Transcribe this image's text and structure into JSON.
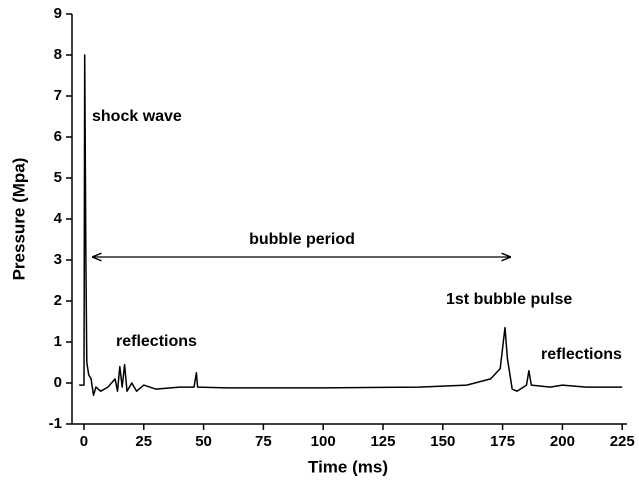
{
  "chart_data": {
    "type": "line",
    "xlabel": "Time (ms)",
    "ylabel": "Pressure (Mpa)",
    "x": [
      -2,
      0,
      0.3,
      0.8,
      1.2,
      2,
      3,
      4,
      5,
      7,
      10,
      13,
      14,
      15,
      16,
      17,
      18,
      20,
      22,
      25,
      30,
      40,
      46,
      47,
      47.5,
      60,
      100,
      140,
      160,
      170,
      174,
      176,
      177,
      179,
      181,
      185,
      186,
      187,
      195,
      200,
      210,
      225
    ],
    "values": [
      -0.05,
      -0.05,
      8.0,
      3,
      0.5,
      0.2,
      0.1,
      -0.3,
      -0.1,
      -0.2,
      -0.1,
      0.1,
      -0.2,
      0.4,
      -0.1,
      0.45,
      -0.2,
      0,
      -0.2,
      -0.05,
      -0.15,
      -0.1,
      -0.1,
      0.25,
      -0.1,
      -0.12,
      -0.12,
      -0.1,
      -0.05,
      0.1,
      0.35,
      1.35,
      0.6,
      -0.15,
      -0.2,
      -0.05,
      0.3,
      -0.05,
      -0.1,
      -0.05,
      -0.1,
      -0.1
    ],
    "color": "#000000",
    "xlim": [
      -5,
      227
    ],
    "ylim": [
      -1,
      9
    ],
    "xticks": [
      0,
      25,
      50,
      75,
      100,
      125,
      150,
      175,
      200,
      225
    ],
    "yticks": [
      -1,
      0,
      1,
      2,
      3,
      4,
      5,
      6,
      7,
      8,
      9
    ],
    "annotations": [
      "shock wave",
      "bubble period",
      "1st bubble pulse",
      "reflections",
      "reflections"
    ]
  }
}
